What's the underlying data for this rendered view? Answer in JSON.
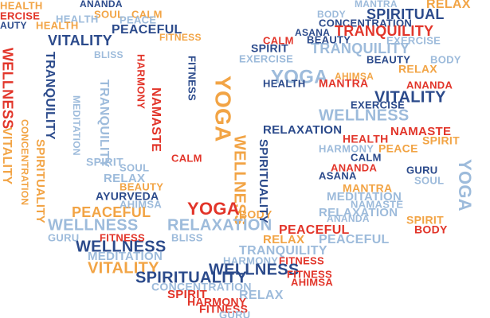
{
  "words": [
    "HEALTH",
    "ANANDA",
    "SOUL",
    "CALM",
    "ERCISE",
    "HEALTH",
    "PEACE",
    "AUTY",
    "HEALTH",
    "PEACEFUL",
    "VITALITY",
    "FITNESS",
    "WELLNESS",
    "TRANQUILITY",
    "BLISS",
    "HARMONY",
    "YOGA",
    "WELLNESS",
    "MANTRA",
    "RELAX",
    "BODY",
    "SPIRITUAL",
    "CONCENTRATION",
    "ASANA",
    "TRANQUILITY",
    "SPIRIT",
    "TRANQUILITY",
    "CALM",
    "BEAUTY",
    "EXERCISE",
    "EXERCISE",
    "BEAUTY",
    "BODY",
    "YOGA",
    "RELAX",
    "AHIMSA",
    "HEALTH",
    "MANTRA",
    "ANANDA",
    "VITALITY",
    "EXERCISE",
    "WELLNESS",
    "RELAXATION",
    "NAMASTE",
    "HEALTH",
    "SPIRIT",
    "HARMONY",
    "PEACE",
    "CALM",
    "ASANA",
    "GURU",
    "YOGA",
    "ANANDA",
    "SOUL",
    "MANTRA",
    "MEDITATION",
    "NAMASTE",
    "RELAXATION",
    "SPIRIT",
    "ANANDA",
    "PEACEFUL",
    "BODY",
    "RELAX",
    "PEACEFUL",
    "TRANQUILITY",
    "HARMONY",
    "FITNESS",
    "WELLNESS",
    "VITALITY",
    "MEDITATION",
    "WELLNESS",
    "GURU",
    "FITNESS",
    "BLISS",
    "WELLNESS",
    "RELAXATION",
    "YOGA",
    "BODY",
    "PEACEFUL",
    "AHIMSA",
    "AYURVEDA",
    "SPIRITUALITY",
    "CONCENTRATION",
    "FITNESS",
    "AHIMSA",
    "SPIRIT",
    "RELAX",
    "HARMONY",
    "FITNESS",
    "GURU",
    "VITALITY",
    "CONCENTRATION",
    "SPIRITUALITY",
    "TRANQUILITY",
    "RELAX",
    "SOUL",
    "SPIRIT",
    "BEAUTY",
    "FITNESS",
    "SPIRITUALITY",
    "NAMASTE",
    "MEDITATION",
    "CALM"
  ]
}
